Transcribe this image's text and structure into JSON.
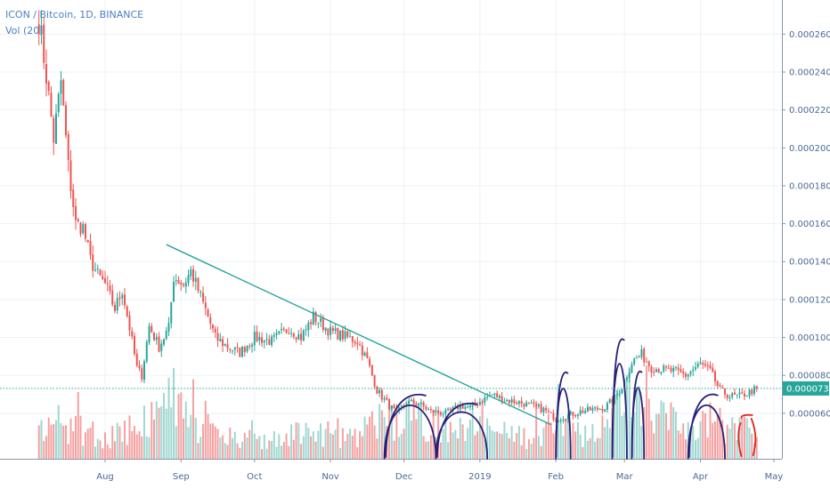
{
  "header": {
    "symbol_line": "ICON / Bitcoin, 1D, BINANCE",
    "volume_label": "Vol (20)"
  },
  "colors": {
    "up": "#26a69a",
    "down": "#ef5350",
    "vol_up": "#9fd7d1",
    "vol_down": "#f5a0a0",
    "trendline": "#26a69a",
    "annotation_blue": "#2a1f78",
    "annotation_red": "#e0261d",
    "last_price_bg": "#26a69a",
    "grid": "#eef1f6",
    "axis_text": "#4a6a94"
  },
  "chart_data": {
    "type": "candlestick",
    "title": "ICON / Bitcoin, 1D, BINANCE",
    "indicator": "Vol (20)",
    "x_ticks": [
      "Aug",
      "Sep",
      "Oct",
      "Nov",
      "Dec",
      "2019",
      "Feb",
      "Mar",
      "Apr",
      "May"
    ],
    "y_ticks": [
      "0.0000600",
      "0.0000800",
      "0.0001000",
      "0.0001200",
      "0.0001400",
      "0.0001600",
      "0.0001800",
      "0.0002000",
      "0.0002200",
      "0.0002400",
      "0.0002600"
    ],
    "ylim": [
      3.6e-05,
      0.000278
    ],
    "last_price": "0.0000731",
    "close_path": [
      [
        "2018-07-05",
        0.000268
      ],
      [
        "2018-07-08",
        0.000238
      ],
      [
        "2018-07-11",
        0.000205
      ],
      [
        "2018-07-14",
        0.000235
      ],
      [
        "2018-07-17",
        0.00019
      ],
      [
        "2018-07-20",
        0.00016
      ],
      [
        "2018-07-23",
        0.000158
      ],
      [
        "2018-07-26",
        0.000141
      ],
      [
        "2018-07-29",
        0.000133
      ],
      [
        "2018-08-01",
        0.000128
      ],
      [
        "2018-08-05",
        0.000115
      ],
      [
        "2018-08-08",
        0.000125
      ],
      [
        "2018-08-11",
        0.000105
      ],
      [
        "2018-08-14",
        8.4e-05
      ],
      [
        "2018-08-16",
        8e-05
      ],
      [
        "2018-08-19",
        0.000106
      ],
      [
        "2018-08-23",
        9.5e-05
      ],
      [
        "2018-08-27",
        0.000105
      ],
      [
        "2018-08-29",
        0.000132
      ],
      [
        "2018-09-02",
        0.000128
      ],
      [
        "2018-09-05",
        0.000135
      ],
      [
        "2018-09-10",
        0.000118
      ],
      [
        "2018-09-15",
        0.0001
      ],
      [
        "2018-09-20",
        9.5e-05
      ],
      [
        "2018-09-25",
        9.2e-05
      ],
      [
        "2018-10-01",
        0.0001
      ],
      [
        "2018-10-08",
        9.8e-05
      ],
      [
        "2018-10-15",
        0.000105
      ],
      [
        "2018-10-20",
        0.0001
      ],
      [
        "2018-10-25",
        0.000111
      ],
      [
        "2018-11-01",
        0.000103
      ],
      [
        "2018-11-08",
        0.0001
      ],
      [
        "2018-11-12",
        9.8e-05
      ],
      [
        "2018-11-16",
        8.8e-05
      ],
      [
        "2018-11-20",
        7.2e-05
      ],
      [
        "2018-11-25",
        6.4e-05
      ],
      [
        "2018-11-28",
        6e-05
      ],
      [
        "2018-12-02",
        6.6e-05
      ],
      [
        "2018-12-07",
        6.5e-05
      ],
      [
        "2018-12-12",
        6.1e-05
      ],
      [
        "2018-12-18",
        6e-05
      ],
      [
        "2018-12-24",
        6.4e-05
      ],
      [
        "2018-12-28",
        6.3e-05
      ],
      [
        "2019-01-02",
        6.7e-05
      ],
      [
        "2019-01-06",
        7e-05
      ],
      [
        "2019-01-11",
        6.7e-05
      ],
      [
        "2019-01-16",
        6.6e-05
      ],
      [
        "2019-01-22",
        6.4e-05
      ],
      [
        "2019-01-27",
        6.2e-05
      ],
      [
        "2019-02-01",
        5.7e-05
      ],
      [
        "2019-02-06",
        5.9e-05
      ],
      [
        "2019-02-11",
        6.1e-05
      ],
      [
        "2019-02-16",
        6.2e-05
      ],
      [
        "2019-02-21",
        6.3e-05
      ],
      [
        "2019-02-25",
        6.8e-05
      ],
      [
        "2019-02-28",
        7.4e-05
      ],
      [
        "2019-03-04",
        8.7e-05
      ],
      [
        "2019-03-08",
        9.1e-05
      ],
      [
        "2019-03-12",
        8.4e-05
      ],
      [
        "2019-03-17",
        8.3e-05
      ],
      [
        "2019-03-22",
        8.2e-05
      ],
      [
        "2019-03-26",
        8e-05
      ],
      [
        "2019-04-01",
        8.6e-05
      ],
      [
        "2019-04-05",
        8.2e-05
      ],
      [
        "2019-04-09",
        7.2e-05
      ],
      [
        "2019-04-13",
        6.9e-05
      ],
      [
        "2019-04-17",
        6.9e-05
      ],
      [
        "2019-04-21",
        7.1e-05
      ],
      [
        "2019-04-24",
        7.31e-05
      ]
    ],
    "trendline": [
      [
        "2018-08-26",
        0.000149
      ],
      [
        "2019-01-30",
        5.4e-05
      ]
    ],
    "volume_profile": [
      [
        "2018-07-05",
        0.4
      ],
      [
        "2018-07-20",
        0.45
      ],
      [
        "2018-08-01",
        0.3
      ],
      [
        "2018-08-14",
        0.5
      ],
      [
        "2018-08-28",
        0.75
      ],
      [
        "2018-09-10",
        0.45
      ],
      [
        "2018-09-25",
        0.3
      ],
      [
        "2018-10-10",
        0.3
      ],
      [
        "2018-10-25",
        0.4
      ],
      [
        "2018-11-10",
        0.3
      ],
      [
        "2018-11-20",
        0.55
      ],
      [
        "2018-12-01",
        0.6
      ],
      [
        "2018-12-15",
        0.5
      ],
      [
        "2018-12-25",
        0.55
      ],
      [
        "2019-01-05",
        0.4
      ],
      [
        "2019-01-20",
        0.3
      ],
      [
        "2019-02-01",
        0.5
      ],
      [
        "2019-02-10",
        0.35
      ],
      [
        "2019-02-25",
        0.6
      ],
      [
        "2019-03-01",
        0.9
      ],
      [
        "2019-03-10",
        0.75
      ],
      [
        "2019-03-25",
        0.45
      ],
      [
        "2019-04-05",
        0.55
      ],
      [
        "2019-04-24",
        0.4
      ]
    ]
  },
  "annotations": [
    {
      "name": "volume-circle-1",
      "color": "blue",
      "t1": "2018-11-23",
      "t2": "2018-12-14",
      "vlo": 3.6e-05,
      "vhi": 7.17e-05
    },
    {
      "name": "volume-circle-2",
      "color": "blue",
      "t1": "2018-12-14",
      "t2": "2019-01-04",
      "vlo": 3.6e-05,
      "vhi": 6.7e-05
    },
    {
      "name": "volume-circle-3",
      "color": "blue",
      "t1": "2019-02-01",
      "t2": "2019-02-07",
      "vlo": 3.6e-05,
      "vhi": 8.35e-05
    },
    {
      "name": "volume-circle-4",
      "color": "blue",
      "t1": "2019-02-24",
      "t2": "2019-03-02",
      "vlo": 3.6e-05,
      "vhi": 0.000101
    },
    {
      "name": "volume-circle-5",
      "color": "blue",
      "t1": "2019-03-04",
      "t2": "2019-03-09",
      "vlo": 3.6e-05,
      "vhi": 8.4e-05
    },
    {
      "name": "volume-circle-6",
      "color": "blue",
      "t1": "2019-03-27",
      "t2": "2019-04-11",
      "vlo": 3.6e-05,
      "vhi": 7.18e-05
    },
    {
      "name": "volume-bracket-red",
      "color": "red",
      "t1": "2019-04-17",
      "t2": "2019-04-24",
      "vlo": 3.6e-05,
      "vhi": 5.95e-05
    }
  ]
}
